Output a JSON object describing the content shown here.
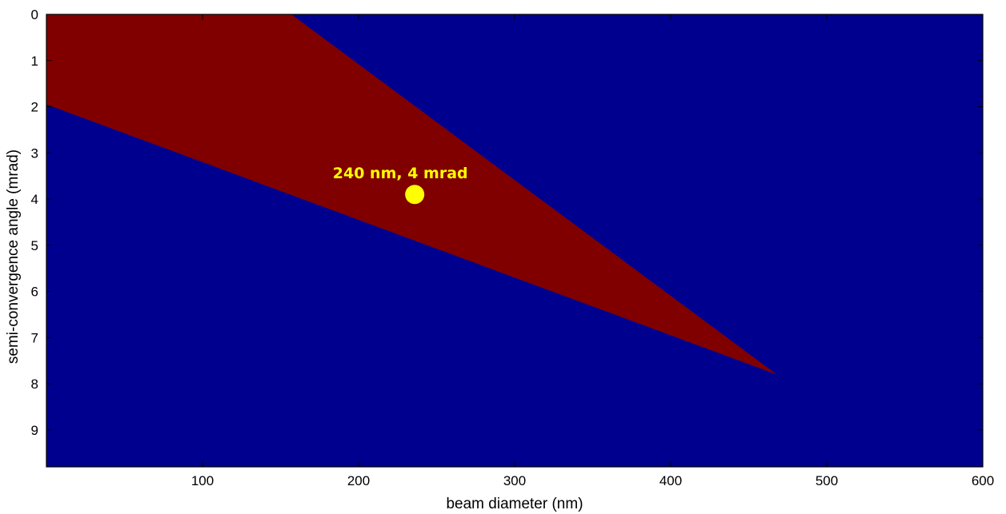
{
  "chart_data": {
    "type": "heatmap",
    "title": "",
    "xlabel": "beam diameter (nm)",
    "ylabel": "semi-convergence angle (mrad)",
    "xlim": [
      0,
      600
    ],
    "ylim": [
      9.8,
      0
    ],
    "y_axis_direction": "top-down",
    "grid": false,
    "legend": "none",
    "x_ticks": [
      100,
      200,
      300,
      400,
      500,
      600
    ],
    "y_ticks": [
      0,
      1,
      2,
      3,
      4,
      5,
      6,
      7,
      8,
      9
    ],
    "background_region": {
      "color": "#00008f"
    },
    "highlight_region": {
      "color": "#800000",
      "vertices": [
        [
          0,
          0
        ],
        [
          157,
          0
        ],
        [
          468,
          7.8
        ],
        [
          0,
          1.95
        ]
      ]
    },
    "marker": {
      "x": 236,
      "y": 3.9,
      "color": "#ffff00"
    },
    "annotations": [
      {
        "text": "240 nm, 4 mrad",
        "x": 236,
        "y": 3.9,
        "color": "#ffff00"
      }
    ]
  }
}
